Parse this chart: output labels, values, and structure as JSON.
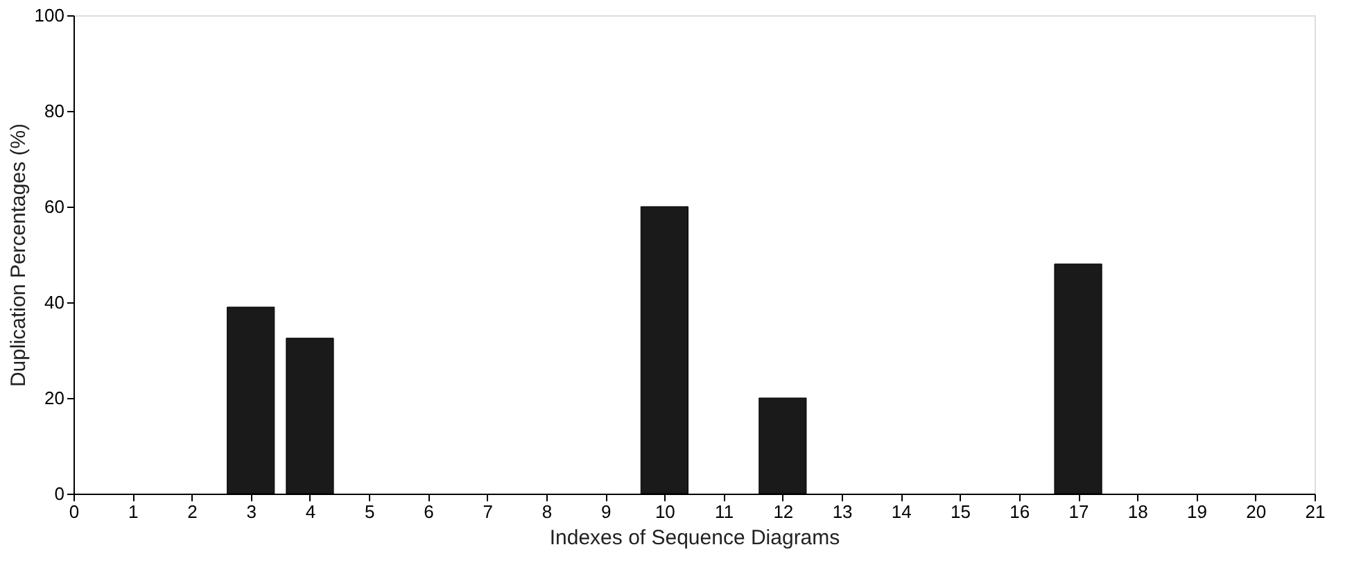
{
  "chart_data": {
    "type": "bar",
    "x": [
      3,
      4,
      10,
      12,
      17
    ],
    "values": [
      39,
      32.5,
      60,
      20,
      48
    ],
    "color": "#1a1a1a",
    "xlabel": "Indexes of Sequence Diagrams",
    "ylabel": "Duplication Percentages (%)",
    "xlim": [
      0,
      21
    ],
    "xticks": [
      0,
      1,
      2,
      3,
      4,
      5,
      6,
      7,
      8,
      9,
      10,
      11,
      12,
      13,
      14,
      15,
      16,
      17,
      18,
      19,
      20,
      21
    ],
    "ylim": [
      0,
      100
    ],
    "yticks": [
      0,
      20,
      40,
      60,
      80,
      100
    ],
    "grid": false
  }
}
